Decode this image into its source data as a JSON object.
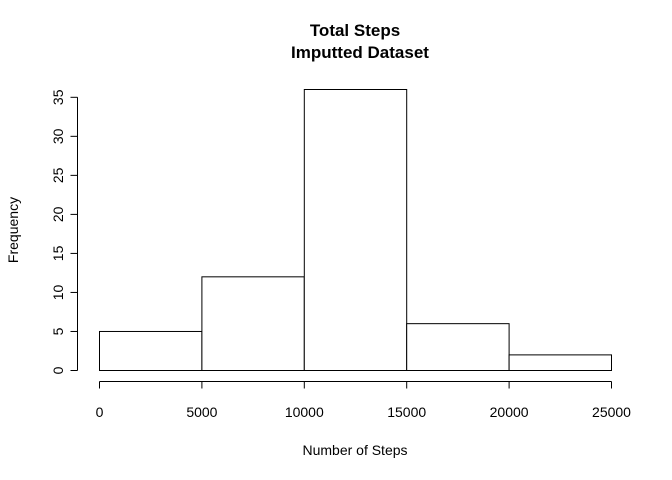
{
  "chart_data": {
    "type": "bar",
    "title": "Total Steps",
    "subtitle": "Imputted Dataset",
    "xlabel": "Number of Steps",
    "ylabel": "Frequency",
    "bins": [
      {
        "from": 0,
        "to": 5000,
        "count": 5
      },
      {
        "from": 5000,
        "to": 10000,
        "count": 12
      },
      {
        "from": 10000,
        "to": 15000,
        "count": 36
      },
      {
        "from": 15000,
        "to": 20000,
        "count": 6
      },
      {
        "from": 20000,
        "to": 25000,
        "count": 2
      }
    ],
    "xlim": [
      0,
      25000
    ],
    "ylim": [
      0,
      36
    ],
    "x_ticks": [
      0,
      5000,
      10000,
      15000,
      20000,
      25000
    ],
    "y_ticks": [
      0,
      5,
      10,
      15,
      20,
      25,
      30,
      35
    ],
    "grid": false,
    "colors": {
      "bar_fill": "#ffffff",
      "bar_stroke": "#000000"
    }
  }
}
